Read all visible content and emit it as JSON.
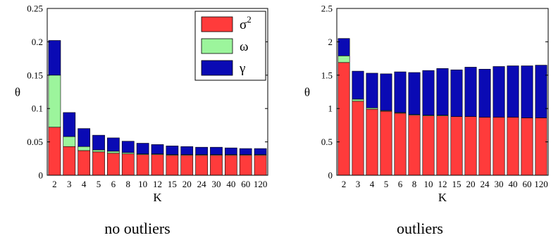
{
  "chart_data": [
    {
      "type": "bar",
      "stacked": true,
      "xlabel": "K",
      "ylabel": "θ",
      "caption": "no outliers",
      "ylim": [
        0,
        0.25
      ],
      "yticks": [
        "0",
        "0.05",
        "0.1",
        "0.15",
        "0.2",
        "0.25"
      ],
      "categories": [
        "2",
        "3",
        "4",
        "5",
        "6",
        "8",
        "10",
        "12",
        "15",
        "20",
        "24",
        "30",
        "40",
        "60",
        "120"
      ],
      "series": [
        {
          "name": "σ",
          "color": "#ff3b3b",
          "values": [
            0.072,
            0.043,
            0.037,
            0.035,
            0.033,
            0.032,
            0.031,
            0.031,
            0.03,
            0.03,
            0.03,
            0.03,
            0.03,
            0.03,
            0.03
          ]
        },
        {
          "name": "ω",
          "color": "#9cf59c",
          "values": [
            0.078,
            0.015,
            0.006,
            0.003,
            0.003,
            0.002,
            0.001,
            0.001,
            0.001,
            0.001,
            0.001,
            0.001,
            0.001,
            0.001,
            0.001
          ]
        },
        {
          "name": "γ",
          "color": "#0a0ab4",
          "values": [
            0.052,
            0.036,
            0.027,
            0.022,
            0.02,
            0.017,
            0.016,
            0.014,
            0.013,
            0.012,
            0.011,
            0.011,
            0.01,
            0.009,
            0.009
          ]
        }
      ],
      "legend": {
        "position": "top-right",
        "sigma_superscript": "2"
      }
    },
    {
      "type": "bar",
      "stacked": true,
      "xlabel": "K",
      "ylabel": "θ",
      "caption": "outliers",
      "ylim": [
        0,
        2.5
      ],
      "yticks": [
        "0",
        "0.5",
        "1",
        "1.5",
        "2",
        "2.5"
      ],
      "categories": [
        "2",
        "3",
        "4",
        "5",
        "6",
        "8",
        "10",
        "12",
        "15",
        "20",
        "24",
        "30",
        "40",
        "60",
        "120"
      ],
      "series": [
        {
          "name": "σ",
          "color": "#ff3b3b",
          "values": [
            1.69,
            1.11,
            0.99,
            0.96,
            0.93,
            0.9,
            0.89,
            0.89,
            0.88,
            0.88,
            0.87,
            0.87,
            0.87,
            0.86,
            0.86
          ]
        },
        {
          "name": "ω",
          "color": "#9cf59c",
          "values": [
            0.1,
            0.03,
            0.02,
            0.01,
            0.01,
            0.01,
            0.01,
            0.01,
            0.0,
            0.0,
            0.0,
            0.0,
            0.0,
            0.0,
            0.0
          ]
        },
        {
          "name": "γ",
          "color": "#0a0ab4",
          "values": [
            0.26,
            0.42,
            0.52,
            0.55,
            0.61,
            0.63,
            0.67,
            0.7,
            0.7,
            0.74,
            0.72,
            0.76,
            0.77,
            0.78,
            0.79
          ]
        }
      ]
    }
  ]
}
